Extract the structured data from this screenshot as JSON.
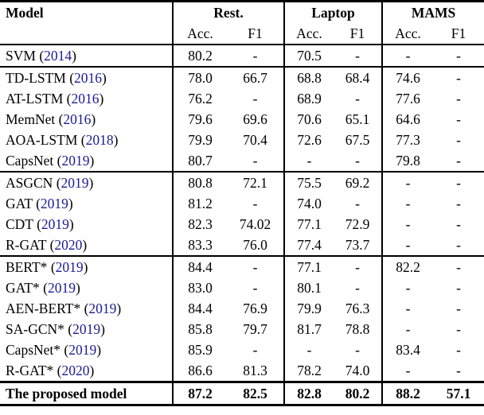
{
  "table": {
    "citation_color": "#1b1b96",
    "header": {
      "model_label": "Model",
      "groups": [
        {
          "label": "Rest.",
          "sub": [
            "Acc.",
            "F1"
          ]
        },
        {
          "label": "Laptop",
          "sub": [
            "Acc.",
            "F1"
          ]
        },
        {
          "label": "MAMS",
          "sub": [
            "Acc.",
            "F1"
          ]
        }
      ]
    },
    "columns": [
      "rest-acc",
      "rest-f1",
      "laptop-acc",
      "laptop-f1",
      "mams-acc",
      "mams-f1"
    ],
    "sections": [
      {
        "rows": [
          {
            "model": "SVM",
            "year": "2014",
            "values": [
              "80.2",
              "-",
              "70.5",
              "-",
              "-",
              "-"
            ]
          }
        ]
      },
      {
        "rows": [
          {
            "model": "TD-LSTM",
            "year": "2016",
            "values": [
              "78.0",
              "66.7",
              "68.8",
              "68.4",
              "74.6",
              "-"
            ]
          },
          {
            "model": "AT-LSTM",
            "year": "2016",
            "values": [
              "76.2",
              "-",
              "68.9",
              "-",
              "77.6",
              "-"
            ]
          },
          {
            "model": "MemNet",
            "year": "2016",
            "values": [
              "79.6",
              "69.6",
              "70.6",
              "65.1",
              "64.6",
              "-"
            ]
          },
          {
            "model": "AOA-LSTM",
            "year": "2018",
            "values": [
              "79.9",
              "70.4",
              "72.6",
              "67.5",
              "77.3",
              "-"
            ]
          },
          {
            "model": "CapsNet",
            "year": "2019",
            "values": [
              "80.7",
              "-",
              "-",
              "-",
              "79.8",
              "-"
            ]
          }
        ]
      },
      {
        "rows": [
          {
            "model": "ASGCN",
            "year": "2019",
            "values": [
              "80.8",
              "72.1",
              "75.5",
              "69.2",
              "-",
              "-"
            ]
          },
          {
            "model": "GAT",
            "year": "2019",
            "values": [
              "81.2",
              "-",
              "74.0",
              "-",
              "-",
              "-"
            ]
          },
          {
            "model": "CDT",
            "year": "2019",
            "values": [
              "82.3",
              "74.02",
              "77.1",
              "72.9",
              "-",
              "-"
            ]
          },
          {
            "model": "R-GAT",
            "year": "2020",
            "values": [
              "83.3",
              "76.0",
              "77.4",
              "73.7",
              "-",
              "-"
            ]
          }
        ]
      },
      {
        "rows": [
          {
            "model": "BERT*",
            "year": "2019",
            "values": [
              "84.4",
              "-",
              "77.1",
              "-",
              "82.2",
              "-"
            ]
          },
          {
            "model": "GAT*",
            "year": "2019",
            "values": [
              "83.0",
              "-",
              "80.1",
              "-",
              "-",
              "-"
            ]
          },
          {
            "model": "AEN-BERT*",
            "year": "2019",
            "values": [
              "84.4",
              "76.9",
              "79.9",
              "76.3",
              "-",
              "-"
            ]
          },
          {
            "model": "SA-GCN*",
            "year": "2019",
            "values": [
              "85.8",
              "79.7",
              "81.7",
              "78.8",
              "-",
              "-"
            ]
          },
          {
            "model": "CapsNet*",
            "year": "2019",
            "values": [
              "85.9",
              "-",
              "-",
              "-",
              "83.4",
              "-"
            ]
          },
          {
            "model": "R-GAT*",
            "year": "2020",
            "values": [
              "86.6",
              "81.3",
              "78.2",
              "74.0",
              "-",
              "-"
            ]
          }
        ]
      },
      {
        "rows": [
          {
            "model": "The proposed model",
            "year": null,
            "bold": true,
            "values": [
              "87.2",
              "82.5",
              "82.8",
              "80.2",
              "88.2",
              "57.1"
            ]
          }
        ]
      }
    ]
  }
}
